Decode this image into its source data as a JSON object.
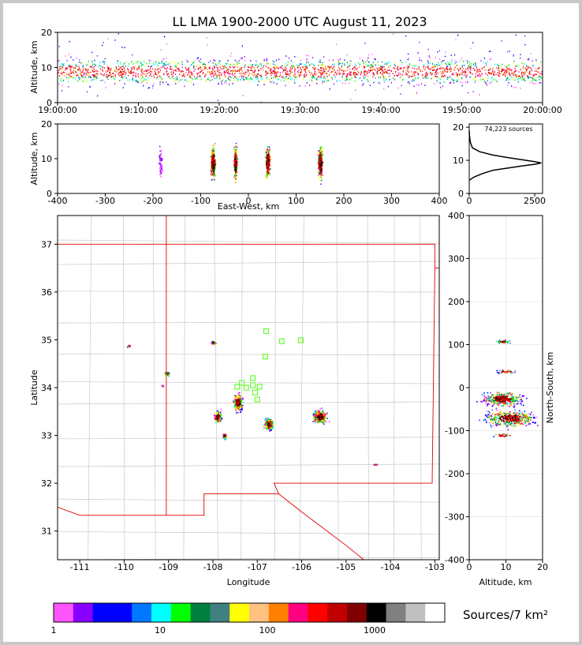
{
  "title": "LL LMA 1900-2000 UTC August 11, 2023",
  "time_panel": {
    "ylabel": "Altitude, km",
    "ytick_labels": [
      "0",
      "10",
      "20"
    ],
    "xtick_labels": [
      "19:00:00",
      "19:10:00",
      "19:20:00",
      "19:30:00",
      "19:40:00",
      "19:50:00",
      "20:00:00"
    ]
  },
  "ew_panel": {
    "ylabel": "Altitude, km",
    "xlabel": "East-West, km",
    "ytick_labels": [
      "0",
      "10",
      "20"
    ],
    "xtick_labels": [
      "-400",
      "-300",
      "-200",
      "-100",
      "0",
      "100",
      "200",
      "300",
      "400"
    ]
  },
  "hist_panel": {
    "annotation": "74,223 sources",
    "ytick_labels": [
      "0",
      "10",
      "20"
    ],
    "xtick_labels": [
      "0",
      "2500"
    ]
  },
  "map_panel": {
    "xlabel": "Longitude",
    "ylabel": "Latitude",
    "xtick_labels": [
      "-111",
      "-110",
      "-109",
      "-108",
      "-107",
      "-106",
      "-105",
      "-104",
      "-103"
    ],
    "ytick_labels": [
      "31",
      "32",
      "33",
      "34",
      "35",
      "36",
      "37"
    ]
  },
  "ns_panel": {
    "xlabel": "Altitude, km",
    "ylabel": "North-South, km",
    "xtick_labels": [
      "0",
      "10",
      "20"
    ],
    "ytick_labels": [
      "-400",
      "-300",
      "-200",
      "-100",
      "0",
      "100",
      "200",
      "300",
      "400"
    ]
  },
  "colorbar": {
    "label": "Sources/7 km²",
    "tick_labels": [
      "1",
      "10",
      "100",
      "1000"
    ],
    "colors": [
      "#ff55ff",
      "#8800ff",
      "#0000ff",
      "#0000ff",
      "#0077ff",
      "#00ffff",
      "#00ff00",
      "#008040",
      "#408080",
      "#ffff00",
      "#ffc080",
      "#ff8000",
      "#ff0080",
      "#ff0000",
      "#c00000",
      "#800000",
      "#000000",
      "#808080",
      "#c0c0c0",
      "#ffffff"
    ]
  },
  "chart_data": [
    {
      "type": "scatter",
      "name": "altitude-vs-time",
      "xlabel": "",
      "ylabel": "Altitude, km",
      "xlim": [
        "19:00:00",
        "20:00:00"
      ],
      "ylim": [
        0,
        20
      ],
      "grid": false,
      "altitude_band_km": [
        4,
        15
      ],
      "core_altitude_km": 9
    },
    {
      "type": "scatter",
      "name": "altitude-vs-east-west",
      "xlabel": "East-West, km",
      "ylabel": "Altitude, km",
      "xlim": [
        -400,
        400
      ],
      "ylim": [
        0,
        20
      ],
      "grid": false,
      "clusters_x_km": [
        -185,
        -75,
        -28,
        40,
        150
      ]
    },
    {
      "type": "line",
      "name": "source-altitude-histogram",
      "annotation": "74,223 sources",
      "xlim": [
        0,
        2800
      ],
      "ylim": [
        0,
        21
      ],
      "points": [
        [
          0,
          4
        ],
        [
          200,
          5
        ],
        [
          500,
          6
        ],
        [
          900,
          7
        ],
        [
          1400,
          7.6
        ],
        [
          2000,
          8.3
        ],
        [
          2500,
          8.8
        ],
        [
          2750,
          9.2
        ],
        [
          2500,
          9.6
        ],
        [
          2000,
          10.2
        ],
        [
          1500,
          10.8
        ],
        [
          900,
          11.6
        ],
        [
          400,
          12.6
        ],
        [
          120,
          13.8
        ],
        [
          40,
          15.5
        ],
        [
          10,
          17.5
        ],
        [
          0,
          19
        ]
      ]
    },
    {
      "type": "scatter",
      "name": "plan-view-map",
      "xlabel": "Longitude",
      "ylabel": "Latitude",
      "xlim": [
        -111.5,
        -102.9
      ],
      "ylim": [
        30.4,
        37.6
      ],
      "storm_clusters": [
        {
          "lon": -107.45,
          "lat": 33.7
        },
        {
          "lon": -106.75,
          "lat": 33.25
        },
        {
          "lon": -105.6,
          "lat": 33.4
        },
        {
          "lon": -107.9,
          "lat": 33.4
        },
        {
          "lon": -109.05,
          "lat": 34.3
        },
        {
          "lon": -107.75,
          "lat": 33.0
        },
        {
          "lon": -108.0,
          "lat": 34.95
        },
        {
          "lon": -109.9,
          "lat": 34.88
        },
        {
          "lon": -109.15,
          "lat": 34.05
        },
        {
          "lon": -104.35,
          "lat": 32.4
        }
      ],
      "stations": [
        {
          "lon": -106.8,
          "lat": 35.18
        },
        {
          "lon": -106.45,
          "lat": 34.97
        },
        {
          "lon": -106.02,
          "lat": 34.99
        },
        {
          "lon": -106.82,
          "lat": 34.65
        },
        {
          "lon": -107.45,
          "lat": 34.02
        },
        {
          "lon": -107.35,
          "lat": 34.1
        },
        {
          "lon": -107.25,
          "lat": 34.0
        },
        {
          "lon": -107.1,
          "lat": 34.2
        },
        {
          "lon": -107.1,
          "lat": 34.05
        },
        {
          "lon": -106.95,
          "lat": 34.02
        },
        {
          "lon": -107.05,
          "lat": 33.9
        },
        {
          "lon": -107.0,
          "lat": 33.75
        }
      ]
    },
    {
      "type": "scatter",
      "name": "north-south-vs-altitude",
      "xlabel": "Altitude, km",
      "ylabel": "North-South, km",
      "xlim": [
        0,
        20
      ],
      "ylim": [
        -400,
        400
      ],
      "clusters": [
        {
          "alt": 9,
          "ns": -25
        },
        {
          "alt": 11,
          "ns": -70
        },
        {
          "alt": 9,
          "ns": 108
        },
        {
          "alt": 10,
          "ns": 38
        },
        {
          "alt": 9,
          "ns": -110
        }
      ]
    }
  ]
}
